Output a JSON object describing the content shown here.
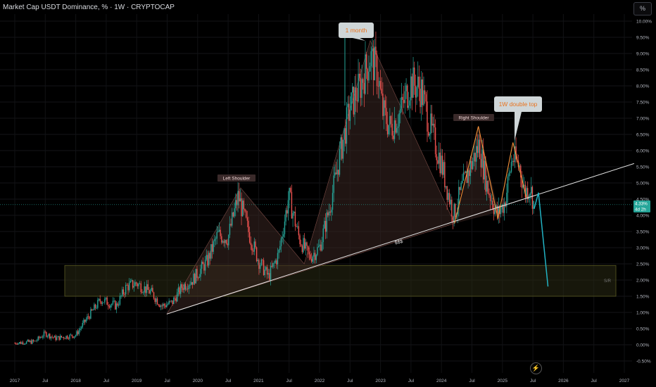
{
  "header": {
    "title": "Market Cap USDT Dominance, % · 1W · CRYPTOCAP",
    "scale_button": "%"
  },
  "price_tag": {
    "value": "4.33%",
    "countdown": "4d 2h"
  },
  "annotations": {
    "left_shoulder": "Left Shoulder",
    "right_shoulder": "Right Shoulder",
    "month_callout": "1 month",
    "double_top_callout": "1W double top",
    "trendline_label": "$$$",
    "sr_zone_label": "S/R"
  },
  "colors": {
    "up_candle": "#26a69a",
    "down_candle": "#ef5350",
    "pattern_fill": "#3a2623",
    "orange_lines": "#f5913a",
    "projection": "#22b3c4",
    "sr_zone": "#2a2a14",
    "price_tag": "#26a69a"
  },
  "chart_data": {
    "type": "candlestick",
    "title": "Market Cap USDT Dominance, % · 1W · CRYPTOCAP",
    "ylim": [
      -0.7,
      10.3
    ],
    "y_ticks": [
      "-0.50%",
      "0.00%",
      "0.50%",
      "1.00%",
      "1.50%",
      "2.00%",
      "2.50%",
      "3.00%",
      "3.50%",
      "4.00%",
      "4.50%",
      "5.00%",
      "5.50%",
      "6.00%",
      "6.50%",
      "7.00%",
      "7.50%",
      "8.00%",
      "8.50%",
      "9.00%",
      "9.50%",
      "10.00%"
    ],
    "x_ticks": [
      "2017",
      "Jul",
      "2018",
      "Jul",
      "2019",
      "Jul",
      "2020",
      "Jul",
      "2021",
      "Jul",
      "2022",
      "Jul",
      "2023",
      "Jul",
      "2024",
      "Jul",
      "2025",
      "Jul",
      "2026",
      "Jul",
      "2027"
    ],
    "series_close_path": [
      [
        "2017-01-01",
        0.05
      ],
      [
        "2017-05-01",
        0.1
      ],
      [
        "2017-07-01",
        0.35
      ],
      [
        "2017-09-01",
        0.2
      ],
      [
        "2018-01-01",
        0.3
      ],
      [
        "2018-03-01",
        0.75
      ],
      [
        "2018-06-01",
        1.4
      ],
      [
        "2018-09-01",
        1.2
      ],
      [
        "2018-11-01",
        1.8
      ],
      [
        "2019-01-01",
        1.9
      ],
      [
        "2019-04-01",
        1.6
      ],
      [
        "2019-06-01",
        1.2
      ],
      [
        "2019-08-01",
        1.3
      ],
      [
        "2019-10-01",
        1.8
      ],
      [
        "2019-12-01",
        2.0
      ],
      [
        "2020-01-01",
        2.2
      ],
      [
        "2020-03-01",
        2.6
      ],
      [
        "2020-05-01",
        3.4
      ],
      [
        "2020-07-01",
        3.3
      ],
      [
        "2020-09-01",
        4.6
      ],
      [
        "2020-11-01",
        3.5
      ],
      [
        "2021-01-01",
        2.6
      ],
      [
        "2021-03-01",
        2.1
      ],
      [
        "2021-05-01",
        2.8
      ],
      [
        "2021-07-01",
        4.6
      ],
      [
        "2021-09-01",
        3.3
      ],
      [
        "2021-11-01",
        2.7
      ],
      [
        "2022-01-01",
        3.0
      ],
      [
        "2022-03-01",
        4.2
      ],
      [
        "2022-05-01",
        5.8
      ],
      [
        "2022-07-01",
        7.3
      ],
      [
        "2022-09-01",
        8.0
      ],
      [
        "2022-11-01",
        8.9
      ],
      [
        "2022-12-15",
        8.4
      ],
      [
        "2023-01-15",
        7.2
      ],
      [
        "2023-03-01",
        6.7
      ],
      [
        "2023-05-01",
        7.2
      ],
      [
        "2023-07-01",
        8.1
      ],
      [
        "2023-09-01",
        7.9
      ],
      [
        "2023-11-01",
        6.6
      ],
      [
        "2024-01-01",
        5.6
      ],
      [
        "2024-02-15",
        4.6
      ],
      [
        "2024-03-15",
        4.0
      ],
      [
        "2024-05-01",
        4.8
      ],
      [
        "2024-07-01",
        5.6
      ],
      [
        "2024-08-15",
        6.2
      ],
      [
        "2024-10-01",
        4.9
      ],
      [
        "2024-12-01",
        4.0
      ],
      [
        "2025-01-15",
        4.4
      ],
      [
        "2025-03-01",
        5.8
      ],
      [
        "2025-04-15",
        5.5
      ],
      [
        "2025-05-15",
        4.7
      ],
      [
        "2025-06-15",
        4.9
      ],
      [
        "2025-07-10",
        4.3
      ]
    ],
    "projection": [
      [
        "2025-07-10",
        4.2
      ],
      [
        "2025-08-05",
        4.7
      ],
      [
        "2025-10-01",
        1.8
      ]
    ],
    "sr_zone": {
      "low": 1.5,
      "high": 2.45
    },
    "trendline": [
      [
        "2019-07-01",
        0.95
      ],
      [
        "2027-03-01",
        5.6
      ]
    ],
    "last_value": 4.33
  }
}
